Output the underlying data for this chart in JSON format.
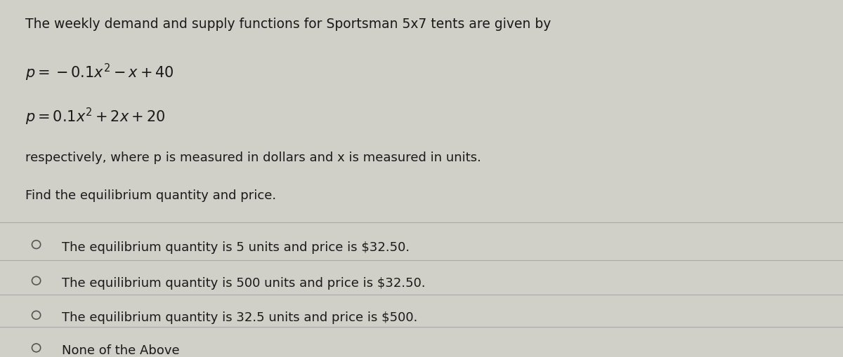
{
  "bg_color": "#d0cfc8",
  "panel_color": "#e8e7e0",
  "text_color": "#1a1a1a",
  "title_line": "The weekly demand and supply functions for Sportsman 5x7 tents are given by",
  "eq1": "$p = -0.1x^2 - x + 40$",
  "eq2": "$p = 0.1x^2 + 2x + 20$",
  "desc_line": "respectively, where p is measured in dollars and x is measured in units.",
  "find_line": "Find the equilibrium quantity and price.",
  "options": [
    "The equilibrium quantity is 5 units and price is $32.50.",
    "The equilibrium quantity is 500 units and price is $32.50.",
    "The equilibrium quantity is 32.5 units and price is $500.",
    "None of the Above"
  ],
  "divider_color": "#aaaaaa",
  "circle_color": "#555555",
  "font_size_title": 13.5,
  "font_size_eq": 15,
  "font_size_desc": 13,
  "font_size_option": 13
}
